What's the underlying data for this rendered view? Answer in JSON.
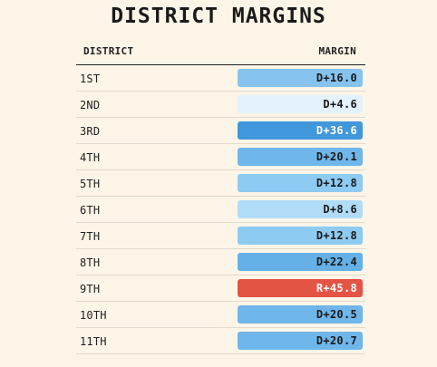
{
  "title": "DISTRICT MARGINS",
  "columns": {
    "district": "DISTRICT",
    "margin": "MARGIN"
  },
  "rows": [
    {
      "district": "1ST",
      "margin": "D+16.0",
      "bg": "#86c4ef",
      "fg": "#1a1a1a"
    },
    {
      "district": "2ND",
      "margin": "D+4.6",
      "bg": "#e3f2fd",
      "fg": "#1a1a1a"
    },
    {
      "district": "3RD",
      "margin": "D+36.6",
      "bg": "#4197dc",
      "fg": "#ffffff"
    },
    {
      "district": "4TH",
      "margin": "D+20.1",
      "bg": "#6fb6ea",
      "fg": "#1a1a1a"
    },
    {
      "district": "5TH",
      "margin": "D+12.8",
      "bg": "#8ecbf2",
      "fg": "#1a1a1a"
    },
    {
      "district": "6TH",
      "margin": "D+8.6",
      "bg": "#b1dcf7",
      "fg": "#1a1a1a"
    },
    {
      "district": "7TH",
      "margin": "D+12.8",
      "bg": "#8ecbf2",
      "fg": "#1a1a1a"
    },
    {
      "district": "8TH",
      "margin": "D+22.4",
      "bg": "#64b0e7",
      "fg": "#1a1a1a"
    },
    {
      "district": "9TH",
      "margin": "R+45.8",
      "bg": "#e45444",
      "fg": "#ffffff"
    },
    {
      "district": "10TH",
      "margin": "D+20.5",
      "bg": "#6fb6ea",
      "fg": "#1a1a1a"
    },
    {
      "district": "11TH",
      "margin": "D+20.7",
      "bg": "#6fb6ea",
      "fg": "#1a1a1a"
    }
  ]
}
